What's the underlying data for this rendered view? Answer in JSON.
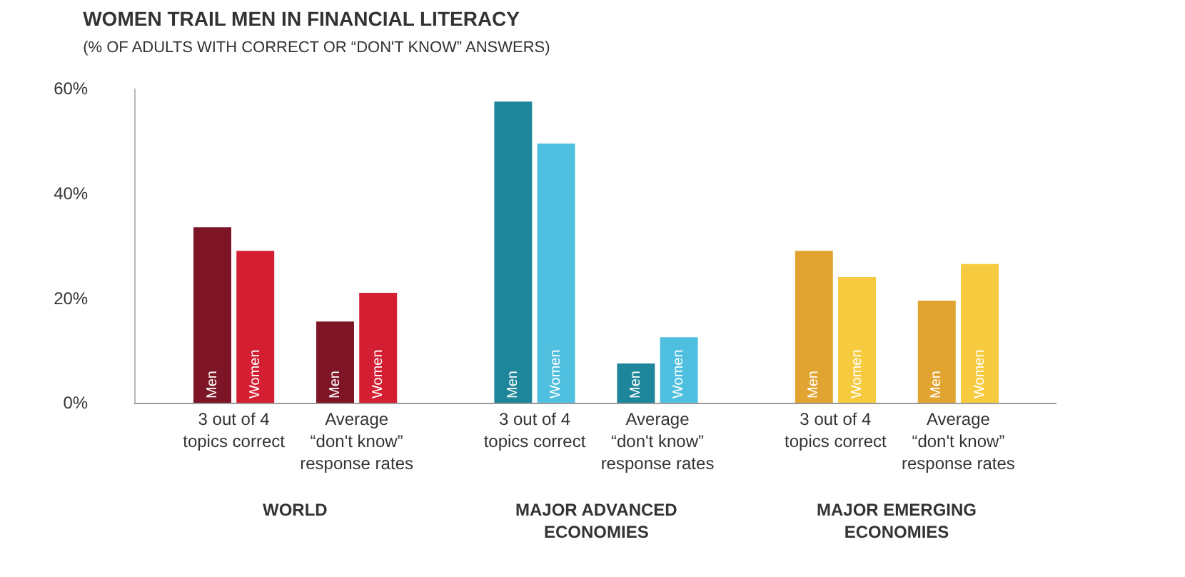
{
  "chart_data": {
    "type": "bar",
    "title": "WOMEN TRAIL MEN IN FINANCIAL LITERACY",
    "subtitle": "(% OF ADULTS WITH CORRECT OR “DON'T KNOW” ANSWERS)",
    "categories": [
      "3 out of 4\ntopics correct",
      "Average\n“don't know”\nresponse rates",
      "3 out of 4\ntopics correct",
      "Average\n“don't know”\nresponse rates",
      "3 out of 4\ntopics correct",
      "Average\n“don't know”\nresponse rates"
    ],
    "series": [
      {
        "name": "Men",
        "colors": [
          "#7d1526",
          "#7d1526",
          "#1e869a",
          "#1e869a",
          "#e2a431",
          "#e2a431"
        ],
        "values": [
          33.5,
          15.5,
          57.5,
          7.5,
          29,
          19.5
        ]
      },
      {
        "name": "Women",
        "colors": [
          "#d41f33",
          "#d41f33",
          "#4fbfdf",
          "#4fbfdf",
          "#f7cb40",
          "#f7cb40"
        ],
        "values": [
          29,
          21,
          49.5,
          12.5,
          24,
          26.5
        ]
      }
    ],
    "annotations": [
      "WORLD",
      "MAJOR ADVANCED\nECONOMIES",
      "MAJOR EMERGING\nECONOMIES"
    ],
    "ylim": [
      0,
      60
    ],
    "yticks": [
      {
        "value": 0,
        "label": "0%"
      },
      {
        "value": 20,
        "label": "20%"
      },
      {
        "value": 40,
        "label": "40%"
      },
      {
        "value": 60,
        "label": "60%"
      }
    ],
    "legend": false
  }
}
